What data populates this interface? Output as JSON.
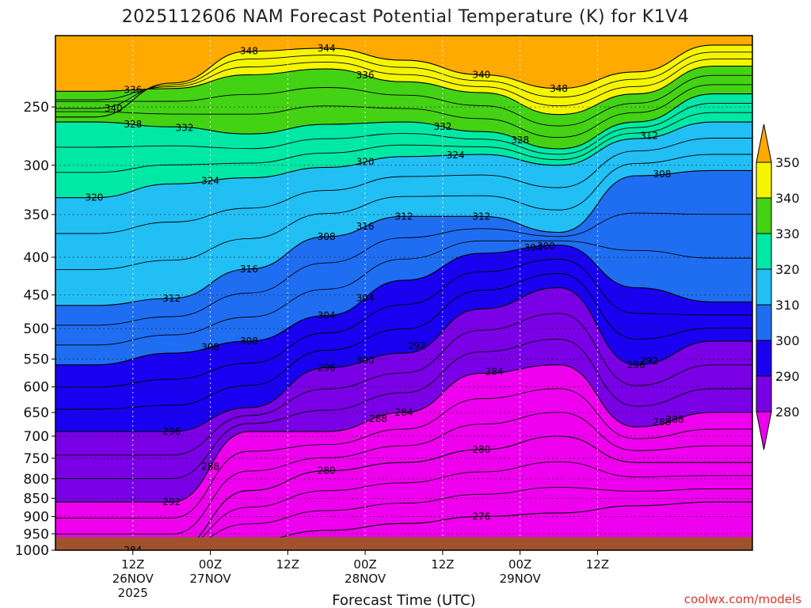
{
  "chart_data": {
    "type": "heatmap",
    "title": "2025112606 NAM Forecast Potential Temperature (K) for K1V4",
    "xlabel": "Forecast Time (UTC)",
    "ylabel": "",
    "y_scale": "log-pressure",
    "ylim": [
      1000,
      200
    ],
    "yticks": [
      250,
      300,
      350,
      400,
      450,
      500,
      550,
      600,
      650,
      700,
      750,
      800,
      850,
      900,
      950,
      1000
    ],
    "xticks": [
      {
        "label": "12Z",
        "sub": "26NOV",
        "sub2": "2025"
      },
      {
        "label": "00Z",
        "sub": "27NOV",
        "sub2": ""
      },
      {
        "label": "12Z",
        "sub": "",
        "sub2": ""
      },
      {
        "label": "00Z",
        "sub": "28NOV",
        "sub2": ""
      },
      {
        "label": "12Z",
        "sub": "",
        "sub2": ""
      },
      {
        "label": "00Z",
        "sub": "29NOV",
        "sub2": ""
      },
      {
        "label": "12Z",
        "sub": "",
        "sub2": ""
      }
    ],
    "grid": true,
    "colorbar": {
      "placement": "right",
      "levels": [
        280,
        290,
        300,
        310,
        320,
        330,
        340,
        350
      ],
      "colors": [
        "#ee00ee",
        "#7a00e6",
        "#1a00f0",
        "#1f6ef2",
        "#22bff5",
        "#00e8a5",
        "#44d214",
        "#f5f500",
        "#ffaa00"
      ]
    },
    "ground_color": "#a0522d",
    "series": [
      {
        "name": "340",
        "values": [
          258,
          232,
          210,
          208,
          216,
          226,
          236,
          224,
          206
        ]
      },
      {
        "name": "336",
        "values": [
          238,
          236,
          226,
          222,
          231,
          239,
          256,
          240,
          220
        ]
      },
      {
        "name": "328",
        "values": [
          262,
          266,
          272,
          264,
          262,
          270,
          285,
          262,
          240
        ]
      },
      {
        "name": "320",
        "values": [
          332,
          318,
          312,
          302,
          292,
          290,
          300,
          276,
          262
        ]
      },
      {
        "name": "312",
        "values": [
          465,
          455,
          415,
          375,
          352,
          352,
          370,
          310,
          305
        ]
      },
      {
        "name": "304",
        "values": [
          560,
          540,
          520,
          480,
          430,
          395,
          385,
          440,
          460
        ]
      },
      {
        "name": "296",
        "values": [
          690,
          690,
          640,
          565,
          540,
          470,
          440,
          560,
          520
        ]
      },
      {
        "name": "288",
        "values": [
          860,
          860,
          690,
          690,
          650,
          575,
          560,
          680,
          650
        ]
      },
      {
        "name": "280",
        "values": [
          1000,
          1000,
          830,
          780,
          760,
          730,
          700,
          760,
          760
        ]
      },
      {
        "name": "276",
        "values": [
          1000,
          1000,
          970,
          940,
          920,
          900,
          890,
          870,
          860
        ]
      }
    ],
    "x": [
      0,
      12,
      24,
      36,
      48,
      60,
      72,
      84,
      96
    ],
    "contour_labels": [
      "340",
      "348",
      "344",
      "336",
      "340",
      "348",
      "336",
      "328",
      "332",
      "332",
      "324",
      "324",
      "320",
      "328",
      "312",
      "316",
      "316",
      "308",
      "320",
      "312",
      "308",
      "304",
      "312",
      "300",
      "308",
      "312",
      "304",
      "308",
      "304",
      "300",
      "296",
      "292",
      "296",
      "284",
      "296",
      "292",
      "288",
      "288",
      "288",
      "284",
      "280",
      "280",
      "276",
      "292",
      "288",
      "284"
    ]
  },
  "credit": "coolwx.com/models"
}
